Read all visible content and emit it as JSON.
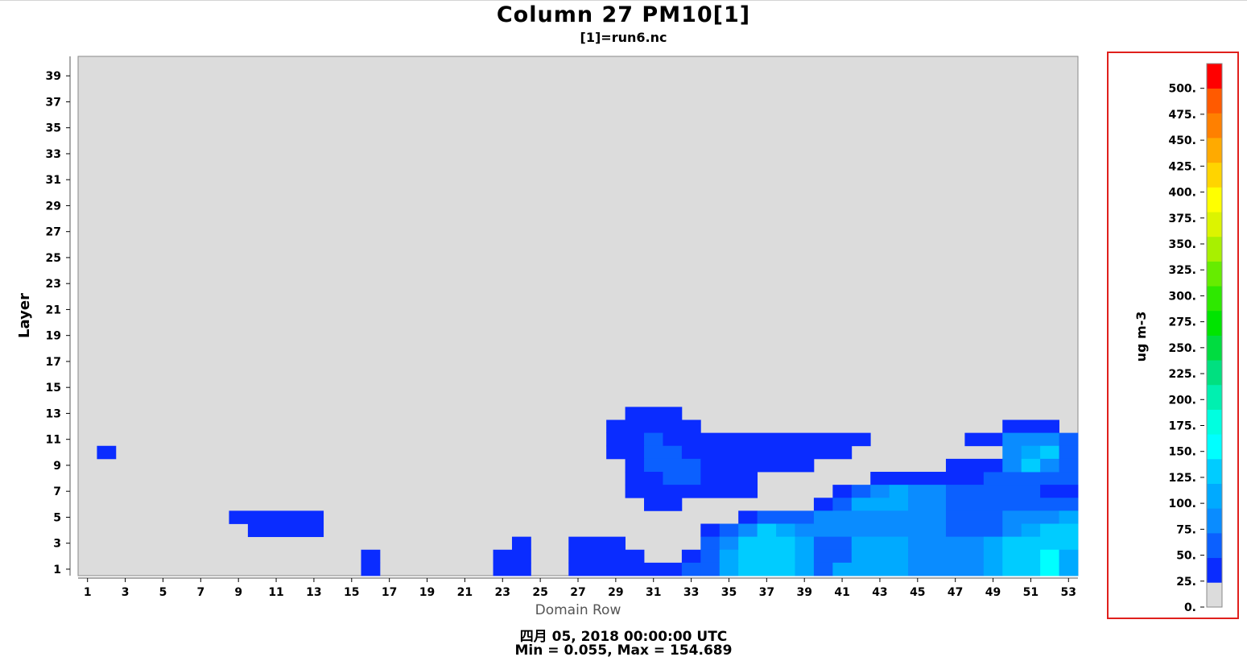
{
  "header": {
    "title": "Column 27 PM10[1]",
    "subtitle": "[1]=run6.nc"
  },
  "footer": {
    "date": "四月 05, 2018 00:00:00 UTC",
    "minmax": "Min = 0.055, Max = 154.689"
  },
  "colors": {
    "background_cell": "#dcdcdc",
    "legend_border": "#e0201c"
  },
  "chart_data": {
    "type": "heatmap",
    "title": "Column 27 PM10[1]",
    "subtitle": "[1]=run6.nc",
    "xlabel": "Domain Row",
    "ylabel": "Layer",
    "xlim": [
      1,
      53
    ],
    "ylim": [
      1,
      40
    ],
    "x_ticks": [
      "1",
      "3",
      "5",
      "7",
      "9",
      "11",
      "13",
      "15",
      "17",
      "19",
      "21",
      "23",
      "25",
      "27",
      "29",
      "31",
      "33",
      "35",
      "37",
      "39",
      "41",
      "43",
      "45",
      "47",
      "49",
      "51",
      "53"
    ],
    "y_ticks": [
      "1",
      "3",
      "5",
      "7",
      "9",
      "11",
      "13",
      "15",
      "17",
      "19",
      "21",
      "23",
      "25",
      "27",
      "29",
      "31",
      "33",
      "35",
      "37",
      "39"
    ],
    "legend": {
      "unit": "ug m-3",
      "labels": [
        "0.",
        "25.",
        "50.",
        "75.",
        "100.",
        "125.",
        "150.",
        "175.",
        "200.",
        "225.",
        "250.",
        "275.",
        "300.",
        "325.",
        "350.",
        "375.",
        "400.",
        "425.",
        "450.",
        "475.",
        "500."
      ],
      "colors": [
        "#dcdcdc",
        "#0a2cff",
        "#0b60ff",
        "#0a8cff",
        "#00aaff",
        "#00ccff",
        "#00ffff",
        "#00ffe0",
        "#00f0b0",
        "#00e080",
        "#00dc40",
        "#00e400",
        "#2ee800",
        "#66ec00",
        "#a8f000",
        "#dcf400",
        "#ffff00",
        "#ffd400",
        "#ffaa00",
        "#ff8000",
        "#ff5a00",
        "#ff0000"
      ]
    },
    "runs": [
      [
        10,
        2,
        2,
        1
      ],
      [
        5,
        9,
        13,
        1
      ],
      [
        4,
        10,
        13,
        1
      ],
      [
        2,
        16,
        16,
        1
      ],
      [
        1,
        16,
        16,
        1
      ],
      [
        3,
        24,
        24,
        1
      ],
      [
        2,
        23,
        24,
        1
      ],
      [
        1,
        23,
        24,
        1
      ],
      [
        3,
        27,
        29,
        1
      ],
      [
        2,
        27,
        30,
        1
      ],
      [
        1,
        27,
        32,
        1
      ],
      [
        2,
        33,
        33,
        1
      ],
      [
        1,
        33,
        33,
        2
      ],
      [
        13,
        30,
        32,
        1
      ],
      [
        12,
        29,
        33,
        1
      ],
      [
        11,
        29,
        30,
        1
      ],
      [
        11,
        31,
        31,
        2
      ],
      [
        11,
        32,
        42,
        1
      ],
      [
        10,
        29,
        30,
        1
      ],
      [
        10,
        31,
        32,
        2
      ],
      [
        10,
        33,
        41,
        1
      ],
      [
        9,
        30,
        30,
        1
      ],
      [
        9,
        31,
        33,
        2
      ],
      [
        9,
        34,
        39,
        1
      ],
      [
        8,
        30,
        31,
        1
      ],
      [
        8,
        32,
        33,
        2
      ],
      [
        8,
        34,
        36,
        1
      ],
      [
        7,
        30,
        36,
        1
      ],
      [
        6,
        31,
        32,
        1
      ],
      [
        5,
        36,
        36,
        1
      ],
      [
        5,
        37,
        40,
        2
      ],
      [
        4,
        34,
        34,
        1
      ],
      [
        4,
        35,
        35,
        2
      ],
      [
        4,
        36,
        36,
        3
      ],
      [
        4,
        37,
        37,
        5
      ],
      [
        4,
        38,
        38,
        4
      ],
      [
        4,
        39,
        39,
        3
      ],
      [
        3,
        34,
        34,
        2
      ],
      [
        3,
        35,
        35,
        3
      ],
      [
        3,
        36,
        38,
        5
      ],
      [
        3,
        39,
        39,
        4
      ],
      [
        2,
        34,
        34,
        2
      ],
      [
        2,
        35,
        35,
        4
      ],
      [
        2,
        36,
        38,
        5
      ],
      [
        2,
        39,
        39,
        4
      ],
      [
        1,
        34,
        34,
        2
      ],
      [
        1,
        35,
        35,
        4
      ],
      [
        1,
        36,
        38,
        5
      ],
      [
        1,
        39,
        39,
        4
      ],
      [
        8,
        43,
        48,
        1
      ],
      [
        8,
        49,
        52,
        2
      ],
      [
        8,
        53,
        53,
        2
      ],
      [
        7,
        41,
        41,
        1
      ],
      [
        7,
        42,
        42,
        2
      ],
      [
        7,
        43,
        43,
        3
      ],
      [
        7,
        44,
        44,
        4
      ],
      [
        7,
        45,
        46,
        3
      ],
      [
        7,
        47,
        51,
        2
      ],
      [
        7,
        52,
        53,
        1
      ],
      [
        6,
        40,
        40,
        1
      ],
      [
        6,
        41,
        41,
        2
      ],
      [
        6,
        42,
        44,
        4
      ],
      [
        6,
        45,
        46,
        3
      ],
      [
        6,
        47,
        53,
        2
      ],
      [
        5,
        40,
        46,
        3
      ],
      [
        5,
        47,
        49,
        2
      ],
      [
        5,
        50,
        52,
        3
      ],
      [
        5,
        53,
        53,
        4
      ],
      [
        4,
        40,
        46,
        3
      ],
      [
        4,
        47,
        49,
        2
      ],
      [
        4,
        50,
        50,
        3
      ],
      [
        4,
        51,
        51,
        4
      ],
      [
        4,
        52,
        52,
        5
      ],
      [
        4,
        53,
        53,
        5
      ],
      [
        3,
        40,
        41,
        2
      ],
      [
        3,
        42,
        44,
        4
      ],
      [
        3,
        45,
        48,
        3
      ],
      [
        3,
        49,
        49,
        4
      ],
      [
        3,
        50,
        52,
        5
      ],
      [
        3,
        53,
        53,
        5
      ],
      [
        2,
        40,
        41,
        2
      ],
      [
        2,
        42,
        44,
        4
      ],
      [
        2,
        45,
        48,
        3
      ],
      [
        2,
        49,
        49,
        4
      ],
      [
        2,
        50,
        51,
        5
      ],
      [
        2,
        52,
        52,
        6
      ],
      [
        2,
        53,
        53,
        4
      ],
      [
        1,
        40,
        40,
        2
      ],
      [
        1,
        41,
        44,
        4
      ],
      [
        1,
        45,
        48,
        3
      ],
      [
        1,
        49,
        49,
        4
      ],
      [
        1,
        50,
        51,
        5
      ],
      [
        1,
        52,
        52,
        6
      ],
      [
        1,
        53,
        53,
        4
      ],
      [
        12,
        50,
        52,
        1
      ],
      [
        11,
        48,
        49,
        1
      ],
      [
        11,
        50,
        52,
        3
      ],
      [
        11,
        53,
        53,
        2
      ],
      [
        10,
        50,
        50,
        3
      ],
      [
        10,
        51,
        51,
        4
      ],
      [
        10,
        52,
        52,
        5
      ],
      [
        10,
        53,
        53,
        2
      ],
      [
        9,
        47,
        49,
        1
      ],
      [
        9,
        50,
        50,
        3
      ],
      [
        9,
        51,
        51,
        5
      ],
      [
        9,
        52,
        52,
        3
      ],
      [
        9,
        53,
        53,
        2
      ]
    ]
  }
}
